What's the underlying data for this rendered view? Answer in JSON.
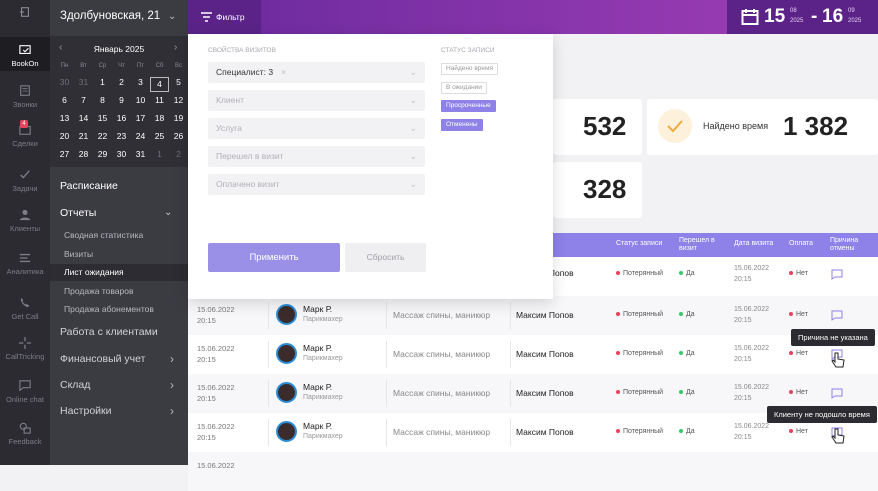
{
  "rail": [
    {
      "label": "BookOn",
      "icon": "bookon-icon",
      "active": true
    },
    {
      "label": "Звонки",
      "icon": "calls-icon"
    },
    {
      "label": "Сделки",
      "icon": "deals-icon",
      "badge": "4"
    },
    {
      "label": "Задачи",
      "icon": "tasks-icon"
    },
    {
      "label": "Клиенты",
      "icon": "clients-icon"
    },
    {
      "label": "Аналитика",
      "icon": "analytics-icon"
    },
    {
      "label": "Get Call",
      "icon": "getcall-icon"
    },
    {
      "label": "CallTricking",
      "icon": "calltracking-icon"
    },
    {
      "label": "Online chat",
      "icon": "chat-icon"
    },
    {
      "label": "Feedback",
      "icon": "feedback-icon"
    }
  ],
  "sidebar": {
    "address": "Здолбуновская, 21",
    "calendar": {
      "month": "Январь 2025",
      "dows": [
        "Пн",
        "Вт",
        "Ср",
        "Чт",
        "Пт",
        "Сб",
        "Вс"
      ],
      "weeks": [
        [
          "30",
          "31",
          "1",
          "2",
          "3",
          "4",
          "5"
        ],
        [
          "6",
          "7",
          "8",
          "9",
          "10",
          "11",
          "12"
        ],
        [
          "13",
          "14",
          "15",
          "16",
          "17",
          "18",
          "19"
        ],
        [
          "20",
          "21",
          "22",
          "23",
          "24",
          "25",
          "26"
        ],
        [
          "27",
          "28",
          "29",
          "30",
          "31",
          "1",
          "2"
        ]
      ],
      "today": "4"
    },
    "schedule": "Расписание",
    "reports": "Отчеты",
    "report_items": [
      "Сводная статистика",
      "Визиты",
      "Лист ожидания",
      "Продажа товаров",
      "Продажа абонементов"
    ],
    "active_item": "Лист ожидания",
    "sections": [
      "Работа с клиентами",
      "Финансовый учет",
      "Склад",
      "Настройки"
    ]
  },
  "topbar": {
    "filter": "Фильтр",
    "date_from": "15",
    "from_month": "08",
    "from_year": "2025",
    "sep": "-",
    "date_to": "16",
    "to_month": "09",
    "to_year": "2025"
  },
  "panel": {
    "visit_props": "СВОЙСТВА ВИЗИТОВ",
    "status_label": "СТАТУС ЗАПИСИ",
    "fields": [
      {
        "text": "Специалист: 3",
        "value": true
      },
      {
        "text": "Клиент"
      },
      {
        "text": "Услуга"
      },
      {
        "text": "Перешел в визит"
      },
      {
        "text": "Оплачено визит"
      }
    ],
    "tags": [
      {
        "text": "Найдено время"
      },
      {
        "text": "В ожидании"
      },
      {
        "text": "Просроченные",
        "on": true
      },
      {
        "text": "Отменены",
        "on": true
      }
    ],
    "apply": "Применить",
    "reset": "Сбросить"
  },
  "stats": {
    "s1": "532",
    "found_label": "Найдено время",
    "found": "1 382",
    "s3": "328"
  },
  "table": {
    "headers": {
      "status": "Статус записи",
      "went": "Перешел в визит",
      "date": "Дата визита",
      "pay": "Оплата",
      "reason": "Причина отмены"
    },
    "first_row": {
      "client": "Максим Попов",
      "status": "Потерянный",
      "went": "Да",
      "date": "15.06.2022",
      "time": "20:15",
      "pay": "Нет"
    },
    "rows": [
      {
        "date": "15.06.2022",
        "time": "20:15",
        "name": "Марк Р.",
        "role": "Парикмахер",
        "service": "Массаж спины, маникюр",
        "client": "Максим Попов",
        "status": "Потерянный",
        "went": "Да",
        "vdate": "15.06.2022",
        "vtime": "20:15",
        "pay": "Нет"
      },
      {
        "date": "15.06.2022",
        "time": "20:15",
        "name": "Марк Р.",
        "role": "Парикмахер",
        "service": "Массаж спины, маникюр",
        "client": "Максим Попов",
        "status": "Потерянный",
        "went": "Да",
        "vdate": "15.06.2022",
        "vtime": "20:15",
        "pay": "Нет"
      },
      {
        "date": "15.06.2022",
        "time": "20:15",
        "name": "Марк Р.",
        "role": "Парикмахер",
        "service": "Массаж спины, маникюр",
        "client": "Максим Попов",
        "status": "Потерянный",
        "went": "Да",
        "vdate": "15.06.2022",
        "vtime": "20:15",
        "pay": "Нет"
      },
      {
        "date": "15.06.2022",
        "time": "20:15",
        "name": "Марк Р.",
        "role": "Парикмахер",
        "service": "Массаж спины, маникюр",
        "client": "Максим Попов",
        "status": "Потерянный",
        "went": "Да",
        "vdate": "15.06.2022",
        "vtime": "20:15",
        "pay": "Нет"
      },
      {
        "date": "15.06.2022",
        "time": "",
        "name": "",
        "role": "",
        "service": "",
        "client": "",
        "status": "",
        "went": "",
        "vdate": "",
        "vtime": "",
        "pay": ""
      }
    ],
    "tip1": "Причина не указана",
    "tip2": "Клиенту не подошло время"
  }
}
